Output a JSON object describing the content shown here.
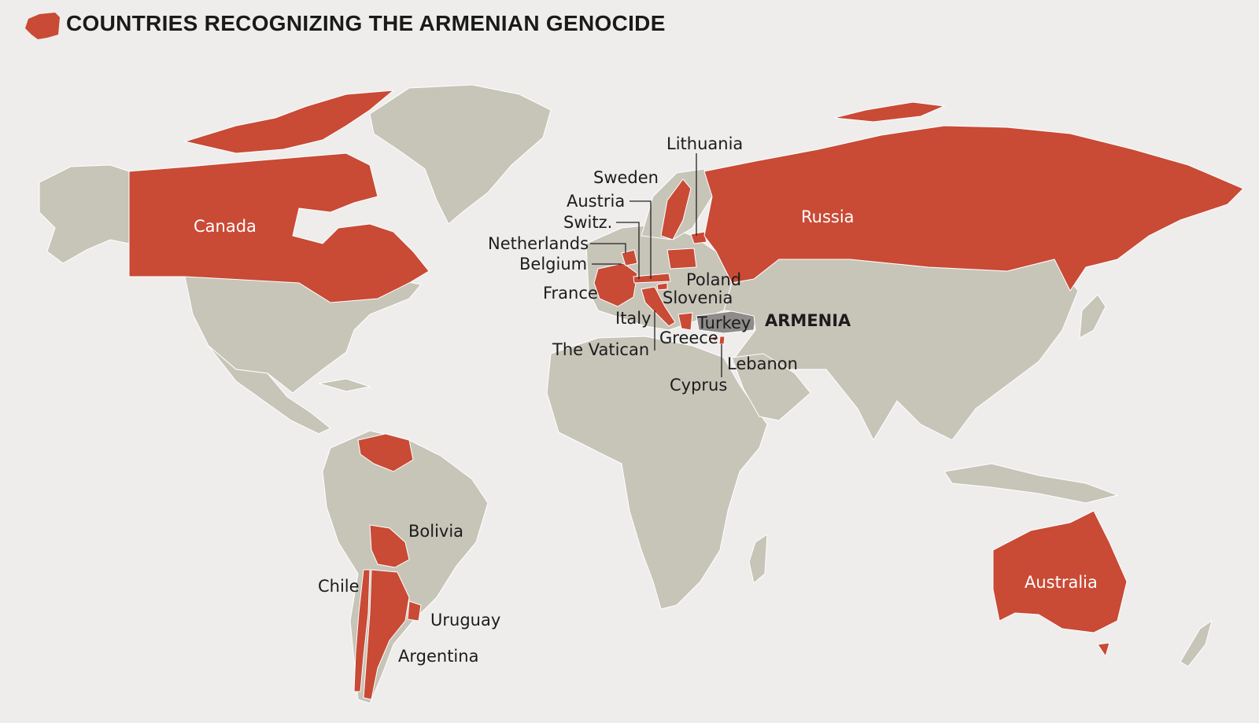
{
  "title": "COUNTRIES RECOGNIZING THE ARMENIAN GENOCIDE",
  "colors": {
    "background": "#eeedeb",
    "land": "#c7c4b8",
    "recognizing": "#c94a35",
    "turkey": "#8e8b8a",
    "label": "#1c1c1c"
  },
  "legend_icon": "red-country-swatch-icon",
  "recognizing_countries": [
    "Canada",
    "Russia",
    "Lithuania",
    "Sweden",
    "Austria",
    "Switz.",
    "Netherlands",
    "Belgium",
    "France",
    "Poland",
    "Slovenia",
    "Italy",
    "The Vatican",
    "Greece",
    "Lebanon",
    "Cyprus",
    "Bolivia",
    "Chile",
    "Uruguay",
    "Argentina",
    "Australia"
  ],
  "labels": {
    "canada": "Canada",
    "russia": "Russia",
    "lithuania": "Lithuania",
    "sweden": "Sweden",
    "austria": "Austria",
    "switz": "Switz.",
    "netherlands": "Netherlands",
    "belgium": "Belgium",
    "france": "France",
    "poland": "Poland",
    "slovenia": "Slovenia",
    "italy": "Italy",
    "turkey": "Turkey",
    "armenia": "ARMENIA",
    "greece": "Greece",
    "vatican": "The Vatican",
    "lebanon": "Lebanon",
    "cyprus": "Cyprus",
    "bolivia": "Bolivia",
    "chile": "Chile",
    "uruguay": "Uruguay",
    "argentina": "Argentina",
    "australia": "Australia"
  }
}
